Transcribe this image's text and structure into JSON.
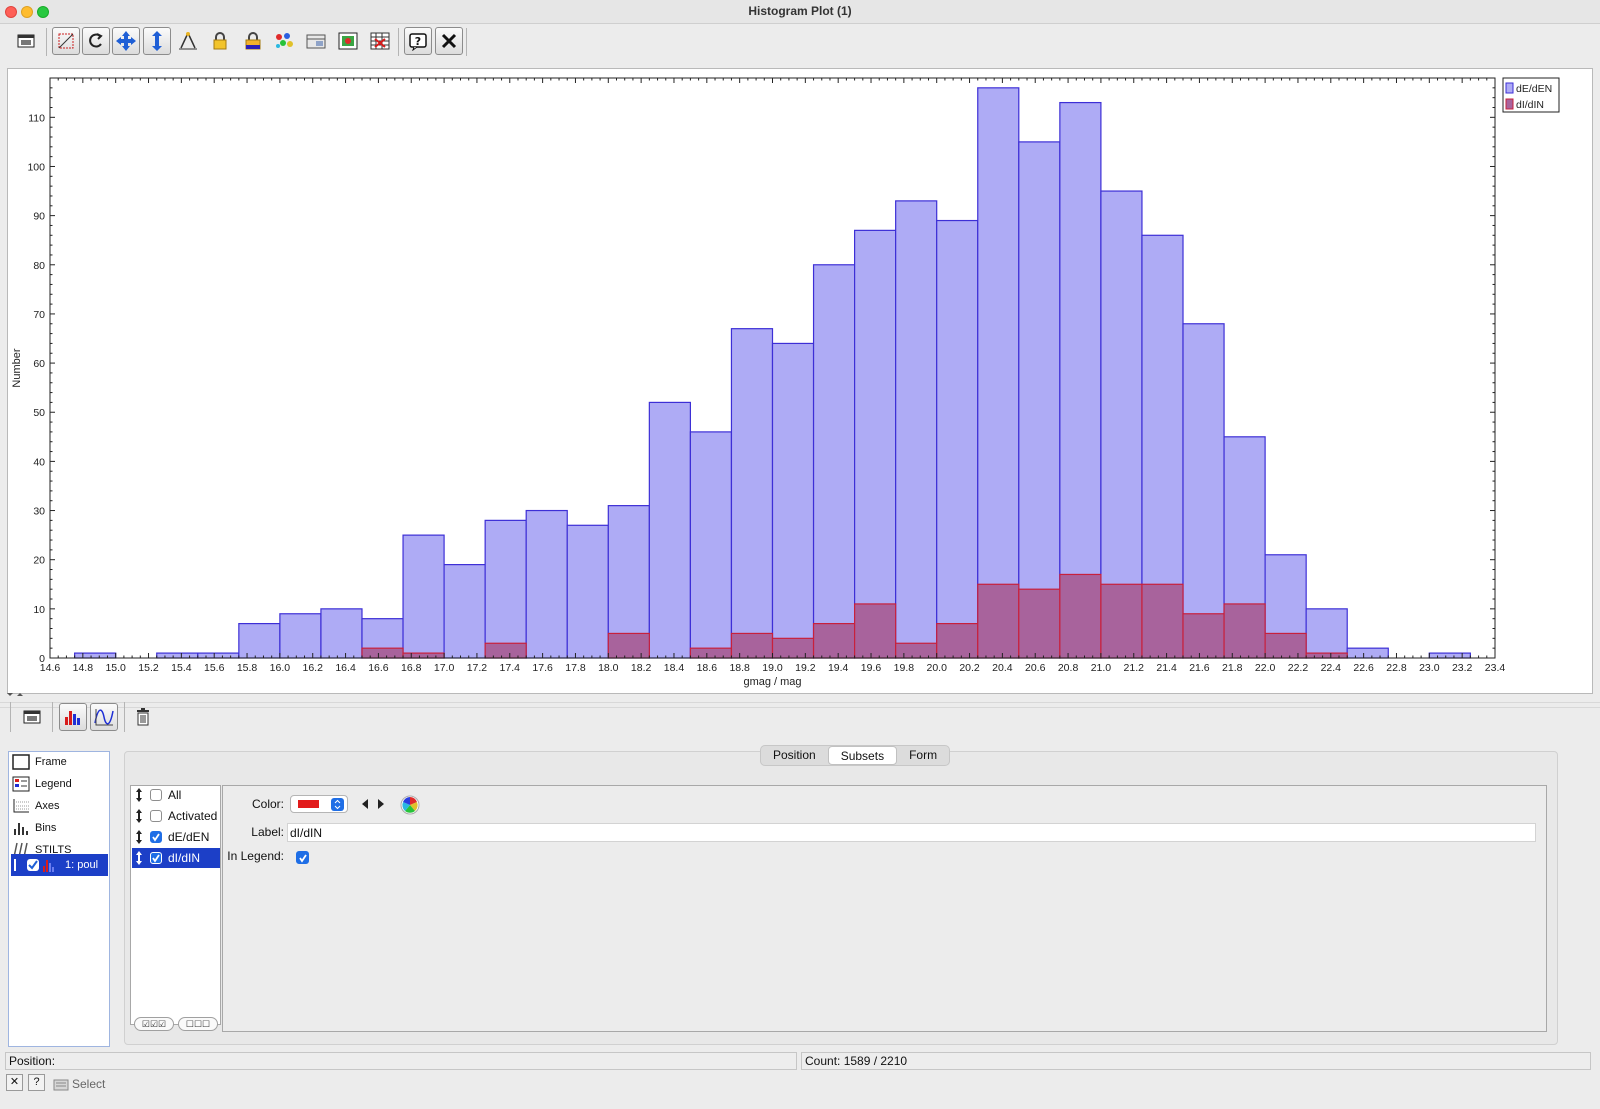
{
  "window": {
    "title": "Histogram Plot (1)"
  },
  "toolbar_icons": [
    "window-icon",
    "rescale-icon",
    "replot-icon",
    "navigate-icon",
    "axis-icon",
    "measure-icon",
    "lock-icon",
    "lock-colors-icon",
    "aux-colors-icon",
    "export-icon",
    "image-export-icon",
    "table-export-icon",
    "help-icon",
    "close-icon"
  ],
  "chart_data": {
    "type": "bar",
    "xlabel": "gmag / mag",
    "ylabel": "Number",
    "xlim": [
      14.6,
      23.4
    ],
    "ylim": [
      0,
      118
    ],
    "bin_width": 0.25,
    "bin_start": 14.75,
    "x_ticks": [
      "14.6",
      "14.8",
      "15.0",
      "15.2",
      "15.4",
      "15.6",
      "15.8",
      "16.0",
      "16.2",
      "16.4",
      "16.6",
      "16.8",
      "17.0",
      "17.2",
      "17.4",
      "17.6",
      "17.8",
      "18.0",
      "18.2",
      "18.4",
      "18.6",
      "18.8",
      "19.0",
      "19.2",
      "19.4",
      "19.6",
      "19.8",
      "20.0",
      "20.2",
      "20.4",
      "20.6",
      "20.8",
      "21.0",
      "21.2",
      "21.4",
      "21.6",
      "21.8",
      "22.0",
      "22.2",
      "22.4",
      "22.6",
      "22.8",
      "23.0",
      "23.2",
      "23.4"
    ],
    "y_ticks": [
      "0",
      "10",
      "20",
      "30",
      "40",
      "50",
      "60",
      "70",
      "80",
      "90",
      "100",
      "110"
    ],
    "series": [
      {
        "name": "dE/dEN",
        "color": "#aeabf5",
        "stroke": "#3d2fd6",
        "values": [
          1,
          0,
          1,
          1,
          7,
          9,
          10,
          8,
          25,
          19,
          28,
          30,
          27,
          31,
          52,
          46,
          67,
          64,
          80,
          87,
          93,
          89,
          116,
          105,
          113,
          95,
          86,
          68,
          45,
          21,
          10,
          2,
          0,
          1
        ]
      },
      {
        "name": "dI/dIN",
        "color": "#a8639c",
        "stroke": "#c8203c",
        "values": [
          0,
          0,
          0,
          0,
          0,
          0,
          0,
          2,
          1,
          0,
          3,
          0,
          0,
          5,
          0,
          2,
          5,
          4,
          7,
          11,
          3,
          7,
          15,
          14,
          17,
          15,
          15,
          9,
          11,
          5,
          1,
          0,
          0,
          0
        ]
      }
    ],
    "legend": "top-right",
    "grid": false
  },
  "layer_toolbar_icons": [
    "window-icon",
    "histogram-layer-icon",
    "function-layer-icon",
    "delete-icon"
  ],
  "layers": {
    "items": [
      "Frame",
      "Legend",
      "Axes",
      "Bins",
      "STILTS"
    ],
    "selected_layer": "1: poul"
  },
  "tabs": [
    "Position",
    "Subsets",
    "Form"
  ],
  "active_tab": "Subsets",
  "subsets": [
    {
      "label": "All",
      "checked": false
    },
    {
      "label": "Activated",
      "checked": false
    },
    {
      "label": "dE/dEN",
      "checked": true
    },
    {
      "label": "dI/dIN",
      "checked": true
    }
  ],
  "form": {
    "color_label": "Color:",
    "color_value": "#e21b1b",
    "label_label": "Label:",
    "label_value": "dI/dIN",
    "in_legend_label": "In Legend:",
    "in_legend_checked": true
  },
  "status": {
    "position_label": "Position:",
    "count_label": "Count: 1589 / 2210",
    "select_label": "Select"
  }
}
